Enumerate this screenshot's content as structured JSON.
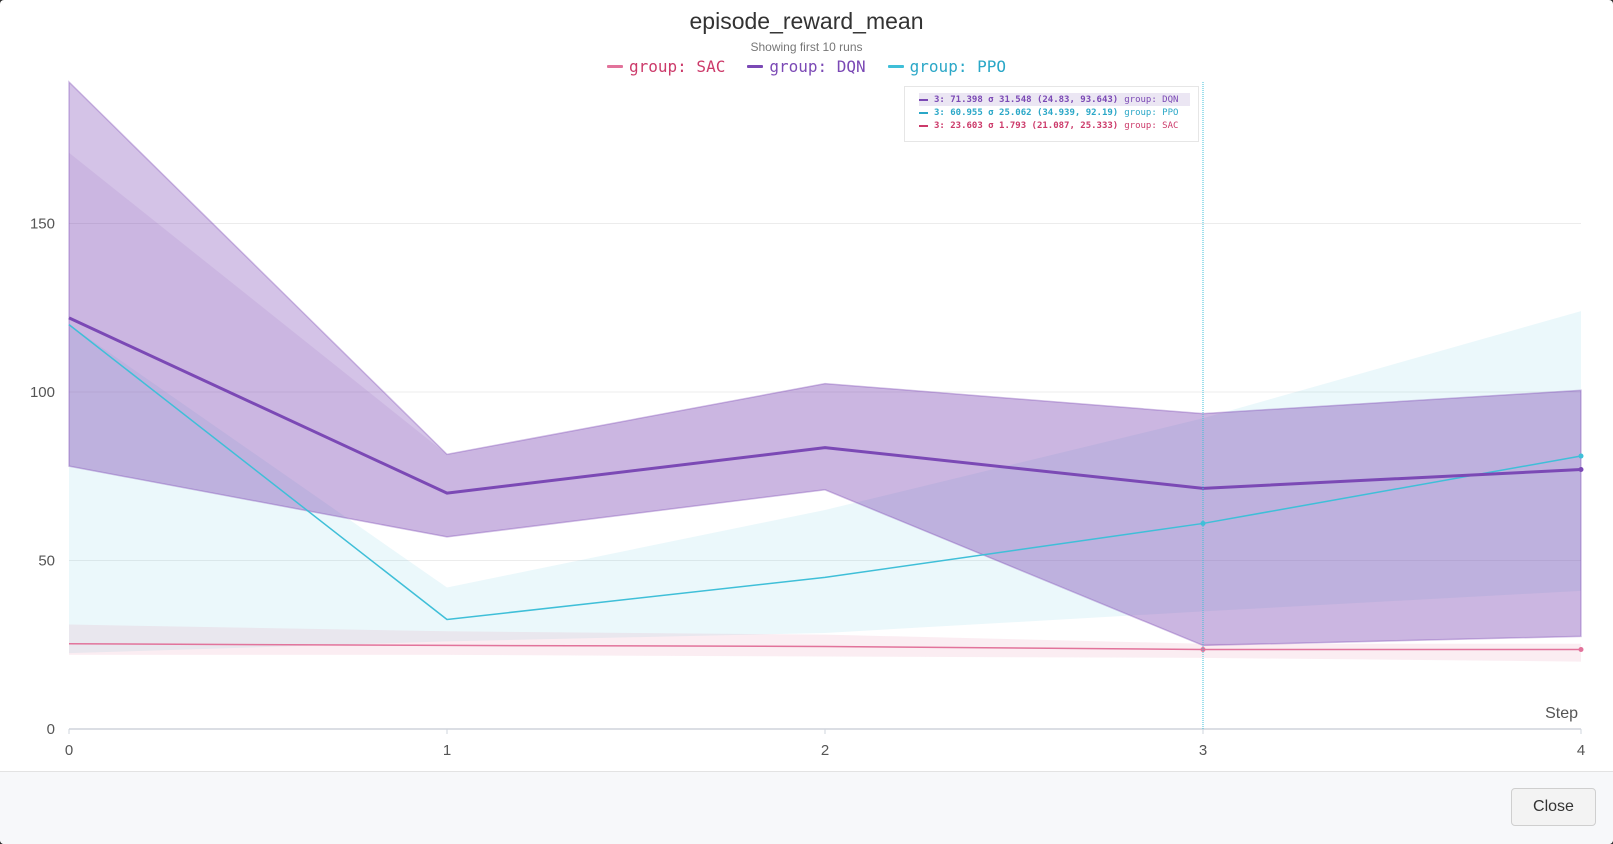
{
  "modal": {
    "close_label": "Close"
  },
  "chart_data": {
    "type": "line",
    "title": "episode_reward_mean",
    "subtitle": "Showing first 10 runs",
    "xlabel": "Step",
    "ylabel": "",
    "x": [
      0,
      1,
      2,
      3,
      4
    ],
    "x_ticks": [
      "0",
      "1",
      "2",
      "3",
      "4"
    ],
    "y_ticks": [
      "0",
      "50",
      "100",
      "150"
    ],
    "xlim": [
      0,
      4
    ],
    "ylim": [
      0,
      192
    ],
    "grid": true,
    "legend_position": "top-center",
    "series": [
      {
        "name": "group: SAC",
        "legend_label": "group: SAC",
        "color": "#e2739b",
        "text_color": "#cc3a6a",
        "values": [
          25.3,
          24.8,
          24.5,
          23.6,
          23.6
        ],
        "band_upper": [
          31,
          29,
          28,
          25.3,
          25.3
        ],
        "band_lower": [
          22,
          22,
          21.5,
          21.1,
          20
        ],
        "marker_at": [
          3,
          4
        ]
      },
      {
        "name": "group: DQN",
        "legend_label": "group: DQN",
        "color": "#7b49b5",
        "text_color": "#7b49b5",
        "values": [
          122,
          70,
          83.5,
          71.4,
          77
        ],
        "band_upper": [
          192,
          81.5,
          102.5,
          93.6,
          100.5
        ],
        "band_lower": [
          78,
          57,
          71,
          24.8,
          27.5
        ],
        "band2_upper": [
          171,
          81.5,
          102.5,
          93.6,
          100.5
        ],
        "band2_lower": [
          78,
          57,
          71,
          24.8,
          27.5
        ],
        "marker_at": [
          4
        ]
      },
      {
        "name": "group: PPO",
        "legend_label": "group: PPO",
        "color": "#3fbfd8",
        "text_color": "#2aa7c7",
        "values": [
          120,
          32.5,
          45,
          61,
          81
        ],
        "band_upper": [
          120,
          42,
          65,
          92.2,
          124
        ],
        "band_lower": [
          22.5,
          26,
          28.5,
          34.9,
          41
        ],
        "marker_at": [
          3,
          4
        ]
      }
    ],
    "hover": {
      "step": 3,
      "rows": [
        {
          "series": "group: DQN",
          "text": "3: 71.398 σ 31.548 (24.83, 93.643)",
          "group": "group: DQN",
          "color": "#7b49b5",
          "highlight": true
        },
        {
          "series": "group: PPO",
          "text": "3: 60.955 σ 25.062 (34.939, 92.19)",
          "group": "group: PPO",
          "color": "#2aa7c7",
          "highlight": false
        },
        {
          "series": "group: SAC",
          "text": "3: 23.603 σ 1.793 (21.087, 25.333)",
          "group": "group: SAC",
          "color": "#cc3a6a",
          "highlight": false
        }
      ]
    }
  }
}
